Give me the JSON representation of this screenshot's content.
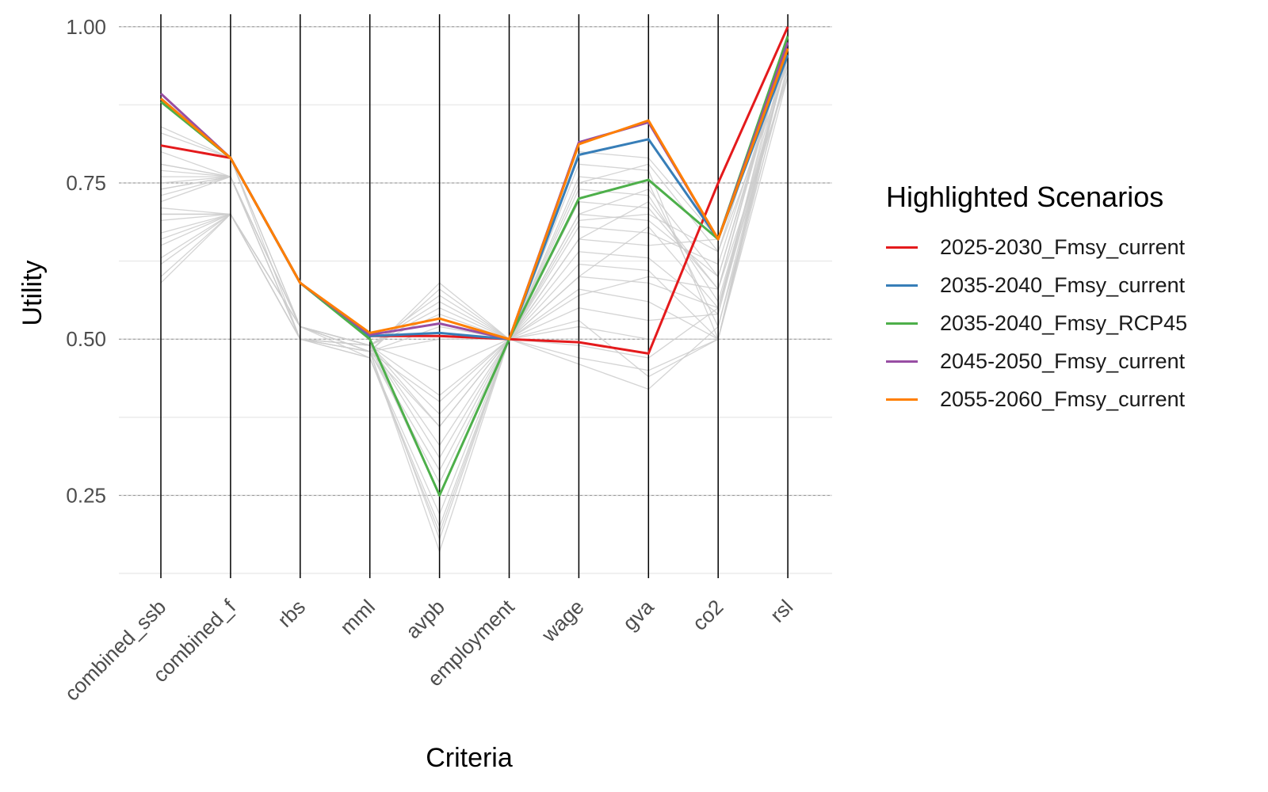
{
  "chart_data": {
    "type": "line",
    "subtype": "parallel-coordinates",
    "title": "",
    "xlabel": "Criteria",
    "ylabel": "Utility",
    "ylim": [
      0.12,
      1.02
    ],
    "yticks": [
      0.25,
      0.5,
      0.75,
      1.0
    ],
    "ytick_labels": [
      "0.25",
      "0.50",
      "0.75",
      "1.00"
    ],
    "grid": true,
    "categories": [
      "combined_ssb",
      "combined_f",
      "rbs",
      "mml",
      "avpb",
      "employment",
      "wage",
      "gva",
      "co2",
      "rsl"
    ],
    "legend": {
      "title": "Highlighted Scenarios",
      "position": "right"
    },
    "series": [
      {
        "name": "2025-2030_Fmsy_current",
        "color": "#e41a1c",
        "values": [
          0.81,
          0.79,
          0.59,
          0.505,
          0.505,
          0.5,
          0.495,
          0.477,
          0.75,
          1.0
        ]
      },
      {
        "name": "2035-2040_Fmsy_current",
        "color": "#377eb8",
        "values": [
          0.885,
          0.79,
          0.59,
          0.505,
          0.51,
          0.5,
          0.795,
          0.82,
          0.66,
          0.955
        ]
      },
      {
        "name": "2035-2040_Fmsy_RCP45",
        "color": "#4daf4a",
        "values": [
          0.88,
          0.79,
          0.59,
          0.5,
          0.25,
          0.5,
          0.725,
          0.755,
          0.66,
          0.985
        ]
      },
      {
        "name": "2045-2050_Fmsy_current",
        "color": "#984ea3",
        "values": [
          0.893,
          0.79,
          0.59,
          0.507,
          0.525,
          0.5,
          0.815,
          0.847,
          0.66,
          0.975
        ]
      },
      {
        "name": "2055-2060_Fmsy_current",
        "color": "#ff7f00",
        "values": [
          0.885,
          0.79,
          0.59,
          0.51,
          0.533,
          0.5,
          0.812,
          0.85,
          0.66,
          0.965
        ]
      }
    ],
    "background_series_color": "#cccccc",
    "background_series": [
      [
        0.59,
        0.7,
        0.5,
        0.48,
        0.16,
        0.5,
        0.47,
        0.45,
        0.5,
        0.92
      ],
      [
        0.62,
        0.7,
        0.52,
        0.48,
        0.18,
        0.5,
        0.49,
        0.47,
        0.55,
        0.93
      ],
      [
        0.63,
        0.7,
        0.5,
        0.47,
        0.2,
        0.5,
        0.52,
        0.5,
        0.5,
        0.94
      ],
      [
        0.65,
        0.7,
        0.52,
        0.47,
        0.22,
        0.5,
        0.55,
        0.53,
        0.54,
        0.95
      ],
      [
        0.67,
        0.7,
        0.5,
        0.49,
        0.25,
        0.5,
        0.58,
        0.56,
        0.5,
        0.96
      ],
      [
        0.69,
        0.7,
        0.52,
        0.48,
        0.27,
        0.5,
        0.6,
        0.59,
        0.55,
        0.97
      ],
      [
        0.7,
        0.7,
        0.5,
        0.48,
        0.29,
        0.5,
        0.62,
        0.61,
        0.5,
        0.98
      ],
      [
        0.71,
        0.7,
        0.52,
        0.49,
        0.31,
        0.5,
        0.64,
        0.63,
        0.54,
        0.99
      ],
      [
        0.72,
        0.76,
        0.52,
        0.49,
        0.33,
        0.5,
        0.66,
        0.65,
        0.66,
        0.96
      ],
      [
        0.73,
        0.76,
        0.52,
        0.48,
        0.36,
        0.5,
        0.68,
        0.67,
        0.62,
        0.97
      ],
      [
        0.74,
        0.76,
        0.5,
        0.49,
        0.38,
        0.5,
        0.7,
        0.69,
        0.6,
        0.98
      ],
      [
        0.75,
        0.76,
        0.52,
        0.48,
        0.4,
        0.5,
        0.72,
        0.71,
        0.58,
        0.99
      ],
      [
        0.76,
        0.76,
        0.5,
        0.49,
        0.41,
        0.5,
        0.74,
        0.73,
        0.56,
        0.95
      ],
      [
        0.77,
        0.76,
        0.52,
        0.49,
        0.45,
        0.5,
        0.76,
        0.75,
        0.52,
        0.96
      ],
      [
        0.78,
        0.76,
        0.5,
        0.48,
        0.5,
        0.5,
        0.78,
        0.77,
        0.5,
        0.97
      ],
      [
        0.78,
        0.76,
        0.52,
        0.49,
        0.55,
        0.5,
        0.8,
        0.79,
        0.66,
        0.98
      ],
      [
        0.8,
        0.76,
        0.5,
        0.48,
        0.58,
        0.5,
        0.75,
        0.78,
        0.64,
        0.99
      ],
      [
        0.81,
        0.79,
        0.52,
        0.49,
        0.57,
        0.5,
        0.7,
        0.74,
        0.6,
        0.97
      ],
      [
        0.83,
        0.79,
        0.52,
        0.48,
        0.59,
        0.5,
        0.66,
        0.72,
        0.58,
        0.98
      ],
      [
        0.84,
        0.79,
        0.5,
        0.49,
        0.56,
        0.5,
        0.6,
        0.68,
        0.55,
        0.95
      ],
      [
        0.7,
        0.7,
        0.52,
        0.49,
        0.54,
        0.5,
        0.53,
        0.44,
        0.5,
        0.96
      ],
      [
        0.66,
        0.7,
        0.5,
        0.48,
        0.52,
        0.5,
        0.46,
        0.42,
        0.52,
        0.93
      ],
      [
        0.74,
        0.76,
        0.52,
        0.49,
        0.36,
        0.5,
        0.69,
        0.7,
        0.64,
        0.94
      ],
      [
        0.6,
        0.7,
        0.5,
        0.47,
        0.19,
        0.5,
        0.57,
        0.6,
        0.58,
        0.92
      ]
    ]
  }
}
